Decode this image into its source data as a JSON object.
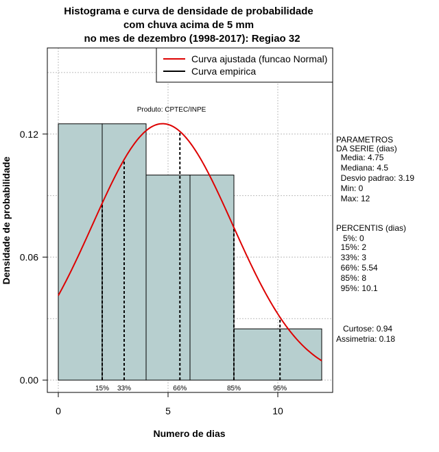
{
  "chart_data": {
    "type": "bar",
    "title_lines": [
      "Histograma e curva de densidade de probabilidade",
      "com chuva acima de 5 mm",
      "no mes de dezembro (1998-2017): Regiao 32"
    ],
    "xlabel": "Numero de dias",
    "ylabel": "Densidade de probabilidade",
    "xlim": [
      -0.5,
      12.5
    ],
    "ylim": [
      -0.006,
      0.162
    ],
    "x_ticks": [
      0,
      5,
      10
    ],
    "y_ticks": [
      0.0,
      0.06,
      0.12
    ],
    "y_tick_labels": [
      "0.00",
      "0.06",
      "0.12"
    ],
    "grid": true,
    "bins": [
      {
        "x0": 0,
        "x1": 2,
        "density": 0.125
      },
      {
        "x0": 2,
        "x1": 4,
        "density": 0.125
      },
      {
        "x0": 4,
        "x1": 6,
        "density": 0.1
      },
      {
        "x0": 6,
        "x1": 8,
        "density": 0.1
      },
      {
        "x0": 8,
        "x1": 12,
        "density": 0.025
      }
    ],
    "normal_fit": {
      "mean": 4.75,
      "sd": 3.19,
      "x_min": 0,
      "x_max": 12
    },
    "percentile_lines": [
      {
        "label": "15%",
        "x": 2
      },
      {
        "label": "33%",
        "x": 3
      },
      {
        "label": "66%",
        "x": 5.54
      },
      {
        "label": "85%",
        "x": 8
      },
      {
        "label": "95%",
        "x": 10.1
      }
    ],
    "legend": {
      "position": "top-right",
      "items": [
        {
          "label": "Curva ajustada (funcao Normal)",
          "color": "#dd0000"
        },
        {
          "label": "Curva empirica",
          "color": "#000000"
        }
      ]
    },
    "annotation": "Produto: CPTEC/INPE",
    "colors": {
      "bar_fill": "#b7cfcf",
      "curve": "#dd0000",
      "grid": "#bbbbbb"
    }
  },
  "side_panel": {
    "parametros_lines": [
      "PARAMETROS",
      "DA SERIE (dias)",
      "  Media: 4.75",
      "  Mediana: 4.5",
      "  Desvio padrao: 3.19",
      "  Min: 0",
      "  Max: 12"
    ],
    "percentis_lines": [
      "PERCENTIS (dias)",
      "   5%: 0",
      "  15%: 2",
      "  33%: 3",
      "  66%: 5.54",
      "  85%: 8",
      "  95%: 10.1"
    ],
    "shape_lines": [
      "   Curtose: 0.94",
      "Assimetria: 0.18"
    ]
  }
}
